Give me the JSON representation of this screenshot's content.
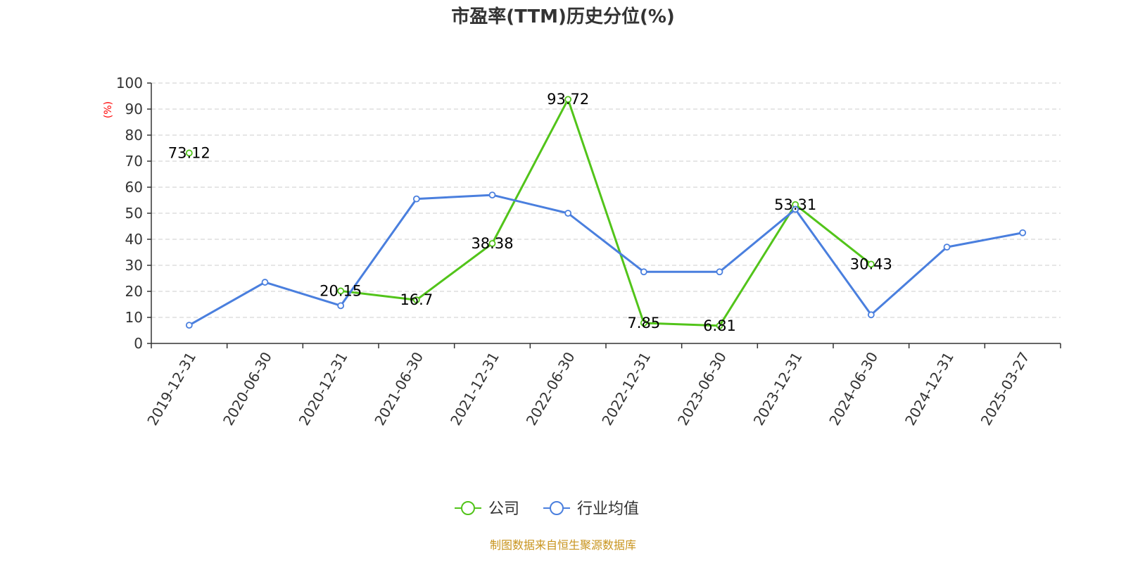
{
  "chart_data": {
    "type": "line",
    "title": "市盈率(TTM)历史分位(%)",
    "ylabel": "(%)",
    "ylim": [
      0,
      100
    ],
    "yticks": [
      0,
      10,
      20,
      30,
      40,
      50,
      60,
      70,
      80,
      90,
      100
    ],
    "categories": [
      "2019-12-31",
      "2020-06-30",
      "2020-12-31",
      "2021-06-30",
      "2021-12-31",
      "2022-06-30",
      "2022-12-31",
      "2023-06-30",
      "2023-12-31",
      "2024-06-30",
      "2024-12-31",
      "2025-03-27"
    ],
    "grid": true,
    "legend_position": "bottom",
    "series": [
      {
        "name": "公司",
        "color": "#52c41a",
        "values": [
          73.12,
          null,
          20.15,
          16.7,
          38.38,
          93.72,
          7.85,
          6.81,
          53.31,
          30.43,
          null,
          null
        ],
        "labels": [
          "73.12",
          null,
          "20.15",
          "16.7",
          "38.38",
          "93.72",
          "7.85",
          "6.81",
          "53.31",
          "30.43",
          null,
          null
        ]
      },
      {
        "name": "行业均值",
        "color": "#4a7fde",
        "values": [
          7,
          23.5,
          14.5,
          55.5,
          57,
          50,
          27.5,
          27.5,
          51.5,
          11,
          37,
          42.5
        ],
        "labels": []
      }
    ],
    "source": "制图数据来自恒生聚源数据库"
  }
}
